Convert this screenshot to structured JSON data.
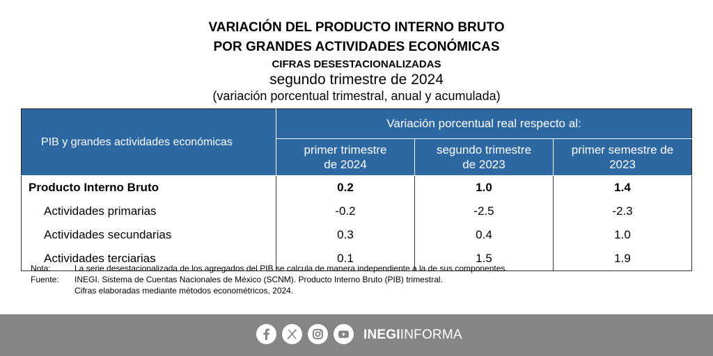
{
  "titles": {
    "line1": "VARIACIÓN DEL PRODUCTO INTERNO BRUTO",
    "line2": "POR GRANDES ACTIVIDADES ECONÓMICAS",
    "line3": "CIFRAS DESESTACIONALIZADAS",
    "line4": "segundo trimestre de 2024",
    "line5": "(variación porcentual trimestral, anual y acumulada)"
  },
  "table": {
    "row_header": "PIB y grandes actividades económicas",
    "group_header": "Variación porcentual real respecto al:",
    "columns": [
      {
        "line1": "primer trimestre",
        "line2": "de 2024"
      },
      {
        "line1": "segundo trimestre",
        "line2": "de 2023"
      },
      {
        "line1": "primer semestre de",
        "line2": "2023"
      }
    ],
    "rows": [
      {
        "label": "Producto Interno Bruto",
        "values": [
          "0.2",
          "1.0",
          "1.4"
        ]
      },
      {
        "label": "Actividades primarias",
        "values": [
          "-0.2",
          "-2.5",
          "-2.3"
        ]
      },
      {
        "label": "Actividades secundarias",
        "values": [
          "0.3",
          "0.4",
          "1.0"
        ]
      },
      {
        "label": "Actividades terciarias",
        "values": [
          "0.1",
          "1.5",
          "1.9"
        ]
      }
    ]
  },
  "notes": {
    "nota_key": "Nota:",
    "nota_text": "La serie desestacionalizada de los agregados del PIB se calcula de manera independiente a la de sus componentes.",
    "fuente_key": "Fuente:",
    "fuente_text": "INEGI. Sistema de Cuentas Nacionales de México (SCNM). Producto Interno Bruto (PIB) trimestral.",
    "fuente_text2": "Cifras elaboradas mediante métodos econométricos, 2024."
  },
  "footer": {
    "brand_bold": "INEGI",
    "brand_light": "INFORMA",
    "icons": [
      "facebook-icon",
      "x-icon",
      "instagram-icon",
      "youtube-icon"
    ]
  },
  "colors": {
    "header_bg": "#2d68a2",
    "footer_bg": "#858585"
  }
}
